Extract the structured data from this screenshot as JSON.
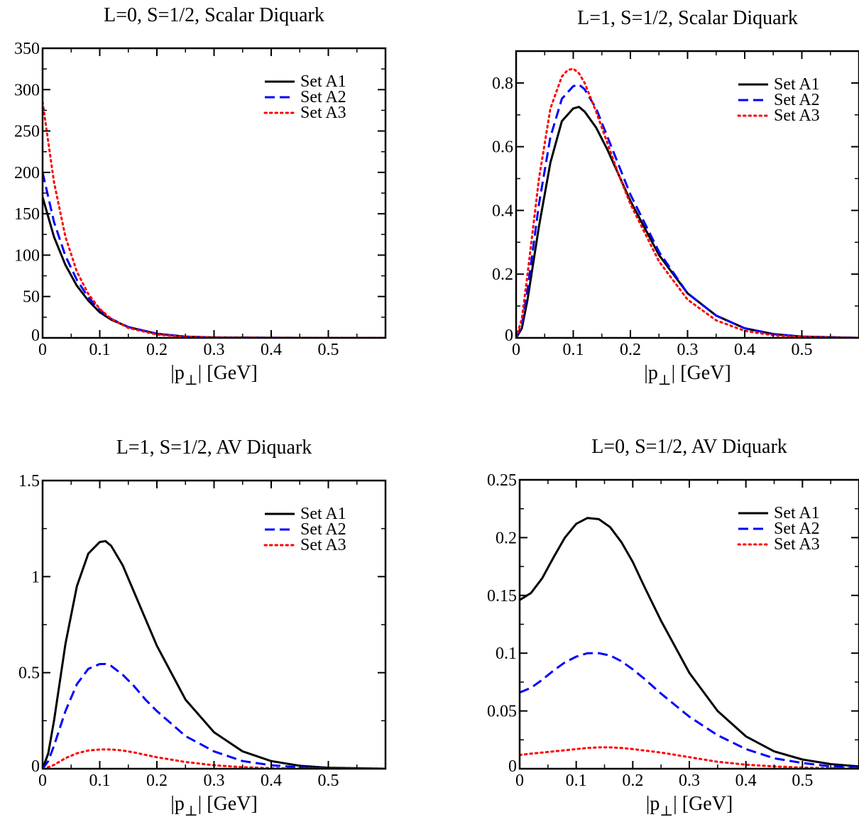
{
  "chart_data": [
    {
      "type": "line",
      "title": "L=0, S=1/2, Scalar Diquark",
      "xlabel": "|p⊥| [GeV]",
      "ylabel": "",
      "xlim": [
        0,
        0.6
      ],
      "ylim": [
        0,
        350
      ],
      "xticks": [
        "0",
        "0.1",
        "0.2",
        "0.3",
        "0.4",
        "0.5"
      ],
      "yticks": [
        "0",
        "50",
        "100",
        "150",
        "200",
        "250",
        "300",
        "350"
      ],
      "legend_position": "top-right",
      "series": [
        {
          "name": "Set A1",
          "style": "solid",
          "color": "#000000",
          "x": [
            0,
            0.02,
            0.04,
            0.06,
            0.08,
            0.1,
            0.12,
            0.15,
            0.2,
            0.25,
            0.3,
            0.4,
            0.5,
            0.6
          ],
          "y": [
            170,
            122,
            88,
            63,
            45,
            31,
            22,
            13,
            5,
            1.5,
            0.5,
            0.1,
            0,
            0
          ]
        },
        {
          "name": "Set A2",
          "style": "dashed",
          "color": "#0000ff",
          "x": [
            0,
            0.02,
            0.04,
            0.06,
            0.08,
            0.1,
            0.12,
            0.15,
            0.2,
            0.25,
            0.3,
            0.4,
            0.5,
            0.6
          ],
          "y": [
            200,
            140,
            99,
            70,
            49,
            34,
            23,
            13,
            5,
            1.5,
            0.5,
            0.1,
            0,
            0
          ]
        },
        {
          "name": "Set A3",
          "style": "dotted",
          "color": "#ff0000",
          "x": [
            0,
            0.02,
            0.04,
            0.06,
            0.08,
            0.1,
            0.12,
            0.15,
            0.2,
            0.25,
            0.3,
            0.4,
            0.5,
            0.6
          ],
          "y": [
            285,
            188,
            122,
            80,
            53,
            35,
            23,
            12,
            4,
            1.2,
            0.4,
            0.1,
            0,
            0
          ]
        }
      ]
    },
    {
      "type": "line",
      "title": "L=1, S=1/2, Scalar Diquark",
      "xlabel": "|p⊥| [GeV]",
      "ylabel": "",
      "xlim": [
        0,
        0.6
      ],
      "ylim": [
        0,
        0.9
      ],
      "xticks": [
        "0",
        "0.1",
        "0.2",
        "0.3",
        "0.4",
        "0.5"
      ],
      "yticks": [
        "0",
        "0.2",
        "0.4",
        "0.6",
        "0.8"
      ],
      "legend_position": "top-right",
      "series": [
        {
          "name": "Set A1",
          "style": "solid",
          "color": "#000000",
          "x": [
            0,
            0.01,
            0.02,
            0.04,
            0.06,
            0.08,
            0.1,
            0.11,
            0.12,
            0.14,
            0.16,
            0.18,
            0.2,
            0.25,
            0.3,
            0.35,
            0.4,
            0.45,
            0.5,
            0.6
          ],
          "y": [
            0,
            0.03,
            0.12,
            0.35,
            0.55,
            0.68,
            0.72,
            0.725,
            0.71,
            0.66,
            0.59,
            0.51,
            0.43,
            0.26,
            0.14,
            0.07,
            0.03,
            0.012,
            0.004,
            0
          ]
        },
        {
          "name": "Set A2",
          "style": "dashed",
          "color": "#0000ff",
          "x": [
            0,
            0.01,
            0.02,
            0.04,
            0.06,
            0.08,
            0.1,
            0.11,
            0.12,
            0.14,
            0.16,
            0.18,
            0.2,
            0.25,
            0.3,
            0.35,
            0.4,
            0.45,
            0.5,
            0.6
          ],
          "y": [
            0,
            0.04,
            0.15,
            0.42,
            0.63,
            0.75,
            0.79,
            0.795,
            0.78,
            0.72,
            0.63,
            0.54,
            0.45,
            0.27,
            0.14,
            0.07,
            0.03,
            0.012,
            0.004,
            0
          ]
        },
        {
          "name": "Set A3",
          "style": "dotted",
          "color": "#ff0000",
          "x": [
            0,
            0.01,
            0.02,
            0.04,
            0.06,
            0.08,
            0.09,
            0.1,
            0.11,
            0.12,
            0.14,
            0.16,
            0.18,
            0.2,
            0.25,
            0.3,
            0.35,
            0.4,
            0.45,
            0.5,
            0.6
          ],
          "y": [
            0,
            0.06,
            0.2,
            0.5,
            0.72,
            0.82,
            0.84,
            0.845,
            0.83,
            0.8,
            0.71,
            0.61,
            0.51,
            0.42,
            0.24,
            0.12,
            0.055,
            0.022,
            0.008,
            0.003,
            0
          ]
        }
      ]
    },
    {
      "type": "line",
      "title": "L=1, S=1/2, AV Diquark",
      "xlabel": "|p⊥| [GeV]",
      "ylabel": "",
      "xlim": [
        0,
        0.6
      ],
      "ylim": [
        0,
        1.5
      ],
      "xticks": [
        "0",
        "0.1",
        "0.2",
        "0.3",
        "0.4",
        "0.5"
      ],
      "yticks": [
        "0",
        "0.5",
        "1",
        "1.5"
      ],
      "legend_position": "top-right",
      "series": [
        {
          "name": "Set A1",
          "style": "solid",
          "color": "#000000",
          "x": [
            0,
            0.01,
            0.02,
            0.04,
            0.06,
            0.08,
            0.1,
            0.11,
            0.12,
            0.14,
            0.16,
            0.18,
            0.2,
            0.25,
            0.3,
            0.35,
            0.4,
            0.45,
            0.5,
            0.6
          ],
          "y": [
            0,
            0.08,
            0.25,
            0.65,
            0.95,
            1.12,
            1.18,
            1.185,
            1.16,
            1.06,
            0.92,
            0.78,
            0.64,
            0.36,
            0.19,
            0.09,
            0.04,
            0.015,
            0.005,
            0
          ]
        },
        {
          "name": "Set A2",
          "style": "dashed",
          "color": "#0000ff",
          "x": [
            0,
            0.01,
            0.02,
            0.04,
            0.06,
            0.08,
            0.1,
            0.11,
            0.12,
            0.14,
            0.16,
            0.18,
            0.2,
            0.25,
            0.3,
            0.35,
            0.4,
            0.45,
            0.5,
            0.6
          ],
          "y": [
            0,
            0.04,
            0.12,
            0.3,
            0.44,
            0.52,
            0.545,
            0.545,
            0.535,
            0.49,
            0.43,
            0.36,
            0.3,
            0.17,
            0.09,
            0.04,
            0.018,
            0.007,
            0.002,
            0
          ]
        },
        {
          "name": "Set A3",
          "style": "dotted",
          "color": "#ff0000",
          "x": [
            0,
            0.01,
            0.02,
            0.04,
            0.06,
            0.08,
            0.1,
            0.12,
            0.14,
            0.16,
            0.18,
            0.2,
            0.25,
            0.3,
            0.35,
            0.4,
            0.45,
            0.5,
            0.6
          ],
          "y": [
            0,
            0.008,
            0.02,
            0.055,
            0.08,
            0.095,
            0.1,
            0.1,
            0.095,
            0.085,
            0.072,
            0.06,
            0.035,
            0.018,
            0.008,
            0.003,
            0.001,
            0,
            0
          ]
        }
      ]
    },
    {
      "type": "line",
      "title": "L=0, S=1/2, AV Diquark",
      "xlabel": "|p⊥| [GeV]",
      "ylabel": "",
      "xlim": [
        0,
        0.6
      ],
      "ylim": [
        0,
        0.25
      ],
      "xticks": [
        "0",
        "0.1",
        "0.2",
        "0.3",
        "0.4",
        "0.5"
      ],
      "yticks": [
        "0",
        "0.05",
        "0.1",
        "0.15",
        "0.2",
        "0.25"
      ],
      "legend_position": "top-right",
      "series": [
        {
          "name": "Set A1",
          "style": "solid",
          "color": "#000000",
          "x": [
            0,
            0.02,
            0.04,
            0.06,
            0.08,
            0.1,
            0.12,
            0.14,
            0.16,
            0.18,
            0.2,
            0.22,
            0.25,
            0.3,
            0.35,
            0.4,
            0.45,
            0.5,
            0.55,
            0.6
          ],
          "y": [
            0.146,
            0.152,
            0.165,
            0.183,
            0.2,
            0.212,
            0.217,
            0.216,
            0.209,
            0.196,
            0.179,
            0.158,
            0.128,
            0.083,
            0.05,
            0.028,
            0.015,
            0.008,
            0.004,
            0.002
          ]
        },
        {
          "name": "Set A2",
          "style": "dashed",
          "color": "#0000ff",
          "x": [
            0,
            0.02,
            0.04,
            0.06,
            0.08,
            0.1,
            0.12,
            0.14,
            0.16,
            0.18,
            0.2,
            0.22,
            0.25,
            0.3,
            0.35,
            0.4,
            0.45,
            0.5,
            0.55,
            0.6
          ],
          "y": [
            0.066,
            0.07,
            0.077,
            0.085,
            0.092,
            0.097,
            0.1,
            0.1,
            0.098,
            0.093,
            0.086,
            0.078,
            0.065,
            0.045,
            0.029,
            0.017,
            0.009,
            0.005,
            0.002,
            0.001
          ]
        },
        {
          "name": "Set A3",
          "style": "dotted",
          "color": "#ff0000",
          "x": [
            0,
            0.02,
            0.04,
            0.06,
            0.08,
            0.1,
            0.12,
            0.14,
            0.16,
            0.18,
            0.2,
            0.25,
            0.3,
            0.35,
            0.4,
            0.45,
            0.5,
            0.55,
            0.6
          ],
          "y": [
            0.012,
            0.013,
            0.014,
            0.015,
            0.016,
            0.017,
            0.018,
            0.0185,
            0.0185,
            0.018,
            0.017,
            0.014,
            0.01,
            0.006,
            0.0035,
            0.002,
            0.001,
            0.0005,
            0.0002
          ]
        }
      ]
    }
  ]
}
